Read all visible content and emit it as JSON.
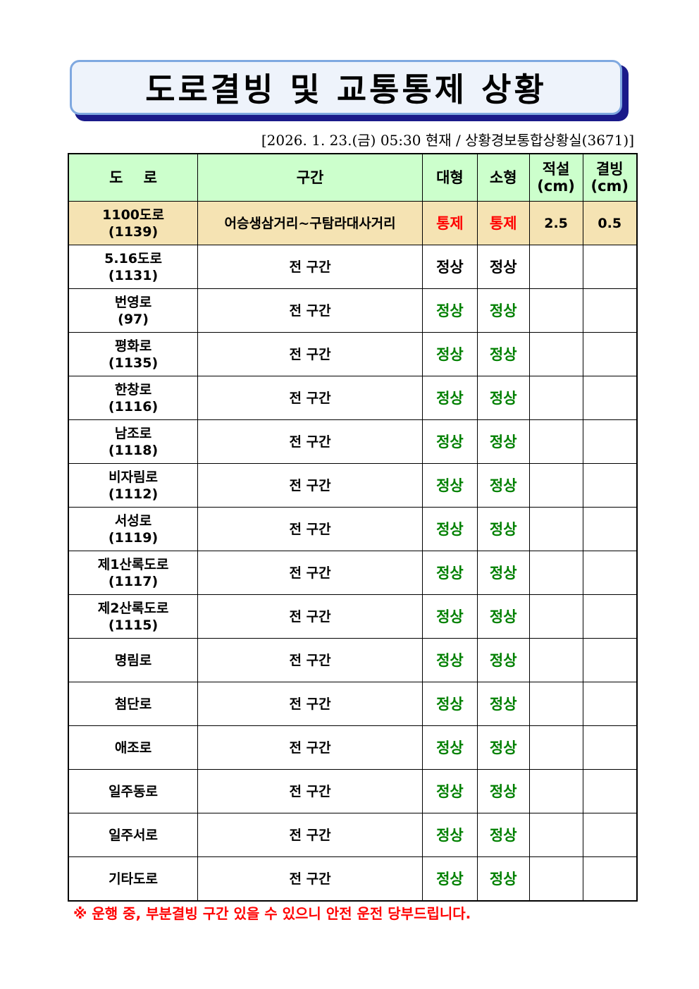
{
  "title": "도로결빙 및 교통통제 상황",
  "subtitle": "[2026. 1. 23.(금) 05:30 현재 / 상황경보통합상황실(3671)]",
  "headers": {
    "road": "도    로",
    "section": "구간",
    "large": "대형",
    "small": "소형",
    "snow": "적설",
    "snow_unit": "(cm)",
    "ice": "결빙",
    "ice_unit": "(cm)"
  },
  "colors": {
    "control": "#ff0000",
    "normal": "#008000",
    "header_bg": "#ccffcc",
    "highlight_bg": "#f5e3b3"
  },
  "rows": [
    {
      "name": "1100도로",
      "code": "(1139)",
      "section": "어승생삼거리~구탐라대사거리",
      "large": "통제",
      "small": "통제",
      "snow": "2.5",
      "ice": "0.5",
      "status": "red",
      "hl": true
    },
    {
      "name": "5.16도로",
      "code": "(1131)",
      "section": "전 구간",
      "large": "정상",
      "small": "정상",
      "snow": "",
      "ice": "",
      "status": "black"
    },
    {
      "name": "번영로",
      "code": "(97)",
      "section": "전 구간",
      "large": "정상",
      "small": "정상",
      "snow": "",
      "ice": "",
      "status": "green"
    },
    {
      "name": "평화로",
      "code": "(1135)",
      "section": "전 구간",
      "large": "정상",
      "small": "정상",
      "snow": "",
      "ice": "",
      "status": "green"
    },
    {
      "name": "한창로",
      "code": "(1116)",
      "section": "전 구간",
      "large": "정상",
      "small": "정상",
      "snow": "",
      "ice": "",
      "status": "green"
    },
    {
      "name": "남조로",
      "code": "(1118)",
      "section": "전 구간",
      "large": "정상",
      "small": "정상",
      "snow": "",
      "ice": "",
      "status": "green"
    },
    {
      "name": "비자림로",
      "code": "(1112)",
      "section": "전 구간",
      "large": "정상",
      "small": "정상",
      "snow": "",
      "ice": "",
      "status": "green"
    },
    {
      "name": "서성로",
      "code": "(1119)",
      "section": "전 구간",
      "large": "정상",
      "small": "정상",
      "snow": "",
      "ice": "",
      "status": "green"
    },
    {
      "name": "제1산록도로",
      "code": "(1117)",
      "section": "전 구간",
      "large": "정상",
      "small": "정상",
      "snow": "",
      "ice": "",
      "status": "green"
    },
    {
      "name": "제2산록도로",
      "code": "(1115)",
      "section": "전 구간",
      "large": "정상",
      "small": "정상",
      "snow": "",
      "ice": "",
      "status": "green"
    },
    {
      "name": "명림로",
      "code": "",
      "section": "전 구간",
      "large": "정상",
      "small": "정상",
      "snow": "",
      "ice": "",
      "status": "green"
    },
    {
      "name": "첨단로",
      "code": "",
      "section": "전 구간",
      "large": "정상",
      "small": "정상",
      "snow": "",
      "ice": "",
      "status": "green"
    },
    {
      "name": "애조로",
      "code": "",
      "section": "전 구간",
      "large": "정상",
      "small": "정상",
      "snow": "",
      "ice": "",
      "status": "green"
    },
    {
      "name": "일주동로",
      "code": "",
      "section": "전 구간",
      "large": "정상",
      "small": "정상",
      "snow": "",
      "ice": "",
      "status": "green"
    },
    {
      "name": "일주서로",
      "code": "",
      "section": "전 구간",
      "large": "정상",
      "small": "정상",
      "snow": "",
      "ice": "",
      "status": "green"
    },
    {
      "name": "기타도로",
      "code": "",
      "section": "전 구간",
      "large": "정상",
      "small": "정상",
      "snow": "",
      "ice": "",
      "status": "green"
    }
  ],
  "notice": "※ 운행 중, 부분결빙 구간 있을 수 있으니 안전 운전 당부드립니다."
}
